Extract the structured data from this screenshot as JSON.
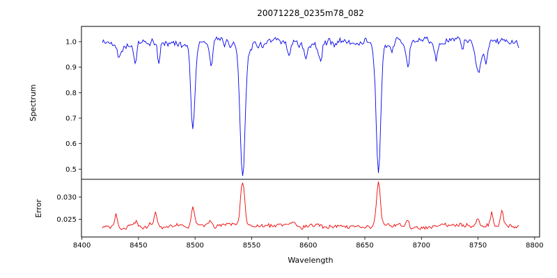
{
  "chart_data": {
    "type": "line",
    "title": "20071228_0235m78_082",
    "xlabel": "Wavelength",
    "xlim": [
      8399.6,
      8804.4
    ],
    "x_range_data": [
      8418,
      8786
    ],
    "x_step": 1.0,
    "x_ticks": [
      8400,
      8450,
      8500,
      8550,
      8600,
      8650,
      8700,
      8750,
      8800
    ],
    "x_tick_labels": [
      "8400",
      "8450",
      "8500",
      "8550",
      "8600",
      "8650",
      "8700",
      "8750",
      "8800"
    ],
    "grid": false,
    "legend": "none",
    "noise_seed": 42,
    "panels": [
      {
        "name": "spectrum",
        "ylabel": "Spectrum",
        "color": "#0000ee",
        "line_width": 0.9,
        "ylim": [
          0.46,
          1.06
        ],
        "y_ticks": [
          0.5,
          0.6,
          0.7,
          0.8,
          0.9,
          1.0
        ],
        "y_tick_labels": [
          "0.5",
          "0.6",
          "0.7",
          "0.8",
          "0.9",
          "1.0"
        ],
        "baseline": 0.995,
        "noise_smooth": 0.8,
        "noise_walk": 0.02,
        "noise_white": 0.018,
        "clip_high": 1.035,
        "features": [
          {
            "center": 8433,
            "amplitude": -0.05,
            "width": 1.5
          },
          {
            "center": 8447,
            "amplitude": -0.09,
            "width": 1.2
          },
          {
            "center": 8468,
            "amplitude": -0.08,
            "width": 1.3
          },
          {
            "center": 8498,
            "amplitude": -0.33,
            "width": 1.8
          },
          {
            "center": 8514,
            "amplitude": -0.1,
            "width": 1.4
          },
          {
            "center": 8542,
            "amplitude": -0.52,
            "width": 2.2
          },
          {
            "center": 8583,
            "amplitude": -0.06,
            "width": 1.3
          },
          {
            "center": 8598,
            "amplitude": -0.06,
            "width": 1.2
          },
          {
            "center": 8611,
            "amplitude": -0.07,
            "width": 1.3
          },
          {
            "center": 8662,
            "amplitude": -0.5,
            "width": 2.0
          },
          {
            "center": 8674,
            "amplitude": -0.06,
            "width": 1.2
          },
          {
            "center": 8688,
            "amplitude": -0.1,
            "width": 1.4
          },
          {
            "center": 8713,
            "amplitude": -0.06,
            "width": 1.2
          },
          {
            "center": 8736,
            "amplitude": -0.05,
            "width": 1.2
          },
          {
            "center": 8750,
            "amplitude": -0.1,
            "width": 2.5
          },
          {
            "center": 8757,
            "amplitude": -0.07,
            "width": 1.3
          }
        ]
      },
      {
        "name": "error",
        "ylabel": "Error",
        "color": "#ee0000",
        "line_width": 0.9,
        "ylim": [
          0.021,
          0.034
        ],
        "y_ticks": [
          0.025,
          0.03
        ],
        "y_tick_labels": [
          "0.025",
          "0.030"
        ],
        "baseline": 0.0235,
        "noise_smooth": 0.8,
        "noise_walk": 0.0006,
        "noise_white": 0.0006,
        "clip_high": 0.0338,
        "features": [
          {
            "center": 8430,
            "amplitude": 0.0028,
            "width": 1.2
          },
          {
            "center": 8448,
            "amplitude": 0.0012,
            "width": 1.0
          },
          {
            "center": 8465,
            "amplitude": 0.003,
            "width": 1.2
          },
          {
            "center": 8498,
            "amplitude": 0.0042,
            "width": 1.5
          },
          {
            "center": 8514,
            "amplitude": 0.0012,
            "width": 1.2
          },
          {
            "center": 8542,
            "amplitude": 0.01,
            "width": 1.8
          },
          {
            "center": 8662,
            "amplitude": 0.0095,
            "width": 1.7
          },
          {
            "center": 8688,
            "amplitude": 0.0015,
            "width": 1.2
          },
          {
            "center": 8750,
            "amplitude": 0.0015,
            "width": 1.5
          },
          {
            "center": 8762,
            "amplitude": 0.0028,
            "width": 1.2
          },
          {
            "center": 8771,
            "amplitude": 0.0038,
            "width": 1.2
          }
        ]
      }
    ]
  }
}
